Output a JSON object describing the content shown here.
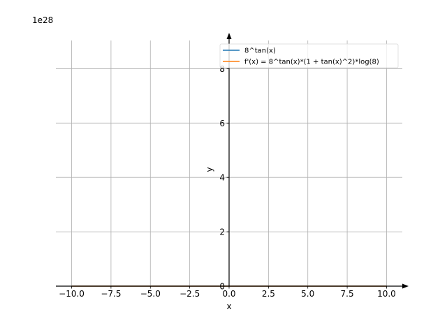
{
  "chart_data": {
    "type": "line",
    "title": "",
    "xlabel": "x",
    "ylabel": "y",
    "y_offset_text": "1e28",
    "xlim": [
      -11,
      11
    ],
    "ylim": [
      0,
      9.5
    ],
    "x_ticks": [
      -10,
      -7.5,
      -5,
      -2.5,
      0,
      2.5,
      5,
      7.5,
      10
    ],
    "x_tick_labels": [
      "−10.0",
      "−7.5",
      "−5.0",
      "−2.5",
      "0.0",
      "2.5",
      "5.0",
      "7.5",
      "10.0"
    ],
    "y_ticks": [
      0,
      2,
      4,
      6,
      8
    ],
    "y_tick_labels": [
      "0",
      "2",
      "4",
      "6",
      "8"
    ],
    "grid": true,
    "legend_position": "top-right",
    "series": [
      {
        "name": "8^tan(x)",
        "color": "#1f77b4",
        "x": [
          -10,
          10
        ],
        "y": [
          0,
          0
        ]
      },
      {
        "name": "f'(x) = 8^tan(x)*(1 + tan(x)^2)*log(8)",
        "color": "#ff7f0e",
        "x": [
          -10,
          10
        ],
        "y": [
          0,
          0
        ]
      }
    ]
  }
}
